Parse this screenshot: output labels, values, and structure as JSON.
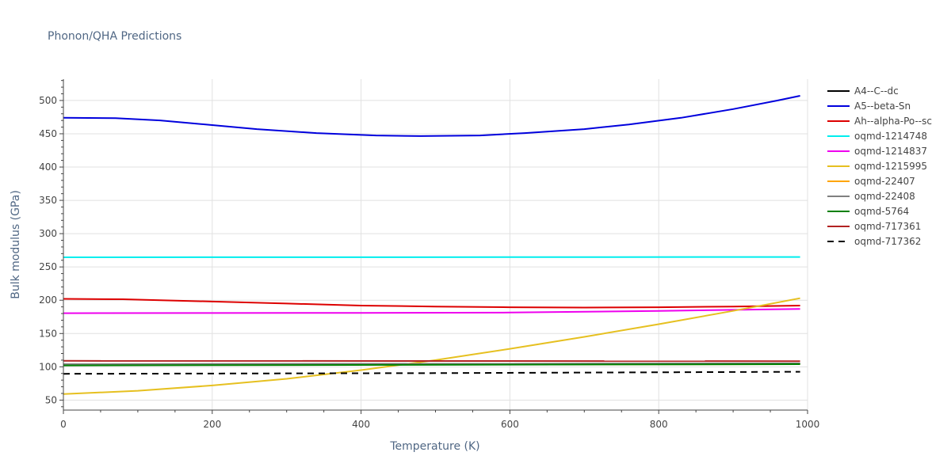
{
  "chart_data": {
    "type": "line",
    "title": "Phonon/QHA Predictions",
    "xlabel": "Temperature (K)",
    "ylabel": "Bulk modulus (GPa)",
    "xlim": [
      0,
      1000
    ],
    "ylim": [
      35,
      532
    ],
    "x_ticks": [
      "0",
      "200",
      "400",
      "600",
      "800",
      "1000"
    ],
    "y_ticks": [
      "50",
      "100",
      "150",
      "200",
      "250",
      "300",
      "350",
      "400",
      "450",
      "500"
    ],
    "grid": true,
    "legend_position": "right",
    "series": [
      {
        "name": "A4--C--dc",
        "color": "#000000",
        "dash": "solid",
        "x": [
          0,
          990
        ],
        "y": [
          104,
          105
        ]
      },
      {
        "name": "A5--beta-Sn",
        "color": "#0000dd",
        "dash": "solid",
        "x": [
          0,
          70,
          130,
          200,
          260,
          340,
          420,
          480,
          560,
          620,
          700,
          760,
          830,
          900,
          960,
          990
        ],
        "y": [
          474,
          473.5,
          470,
          463,
          457,
          451,
          447.5,
          446.5,
          447.5,
          451,
          457,
          464,
          474,
          487,
          500,
          507
        ]
      },
      {
        "name": "Ah--alpha-Po--sc",
        "color": "#dd0000",
        "dash": "solid",
        "x": [
          0,
          80,
          200,
          300,
          400,
          500,
          600,
          700,
          800,
          900,
          990
        ],
        "y": [
          202,
          201.5,
          198,
          195,
          192,
          190.5,
          189.5,
          189,
          189.5,
          190.5,
          192
        ]
      },
      {
        "name": "oqmd-1214748",
        "color": "#00eeee",
        "dash": "solid",
        "x": [
          0,
          990
        ],
        "y": [
          264.5,
          265
        ]
      },
      {
        "name": "oqmd-1214837",
        "color": "#ee00ee",
        "dash": "solid",
        "x": [
          0,
          200,
          400,
          600,
          800,
          990
        ],
        "y": [
          180.5,
          180.8,
          181,
          181.5,
          184,
          187
        ]
      },
      {
        "name": "oqmd-1215995",
        "color": "#e6c020",
        "dash": "solid",
        "x": [
          0,
          100,
          200,
          300,
          400,
          500,
          600,
          700,
          800,
          900,
          990
        ],
        "y": [
          59,
          64,
          72,
          82,
          95,
          110,
          127,
          145,
          164,
          184,
          203
        ]
      },
      {
        "name": "oqmd-22407",
        "color": "#ffa500",
        "dash": "solid",
        "x": [
          0,
          990
        ],
        "y": [
          103,
          104
        ]
      },
      {
        "name": "oqmd-22408",
        "color": "#808080",
        "dash": "solid",
        "x": [
          0,
          990
        ],
        "y": [
          104,
          105
        ]
      },
      {
        "name": "oqmd-5764",
        "color": "#008000",
        "dash": "solid",
        "x": [
          0,
          990
        ],
        "y": [
          102,
          104
        ]
      },
      {
        "name": "oqmd-717361",
        "color": "#b22222",
        "dash": "solid",
        "x": [
          0,
          990
        ],
        "y": [
          109,
          108.5
        ]
      },
      {
        "name": "oqmd-717362",
        "color": "#000000",
        "dash": "dash",
        "x": [
          0,
          500,
          990
        ],
        "y": [
          89.5,
          90.5,
          92.5
        ]
      }
    ]
  }
}
